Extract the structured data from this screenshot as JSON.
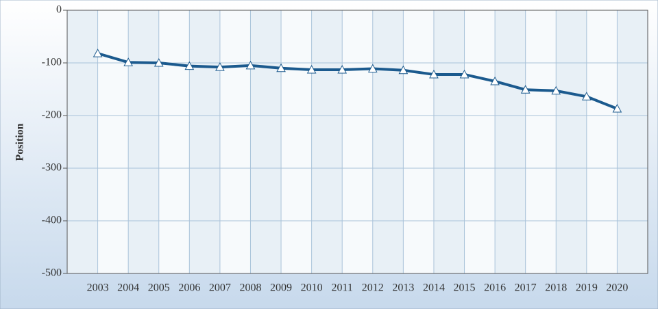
{
  "chart_data": {
    "type": "line",
    "y_label": "Position",
    "categories": [
      "2003",
      "2004",
      "2005",
      "2006",
      "2007",
      "2008",
      "2009",
      "2010",
      "2011",
      "2012",
      "2013",
      "2014",
      "2015",
      "2016",
      "2017",
      "2018",
      "2019",
      "2020"
    ],
    "series": [
      {
        "color": "#1b5a8e",
        "values": [
          -82,
          -99,
          -100,
          -106,
          -108,
          -105,
          -110,
          -113,
          -113,
          -111,
          -114,
          -122,
          -122,
          -135,
          -151,
          -153,
          -164,
          -187
        ]
      }
    ],
    "ylim": [
      -500,
      0
    ],
    "yticks": [
      0,
      -100,
      -200,
      -300,
      -400,
      -500
    ],
    "grid": true
  }
}
